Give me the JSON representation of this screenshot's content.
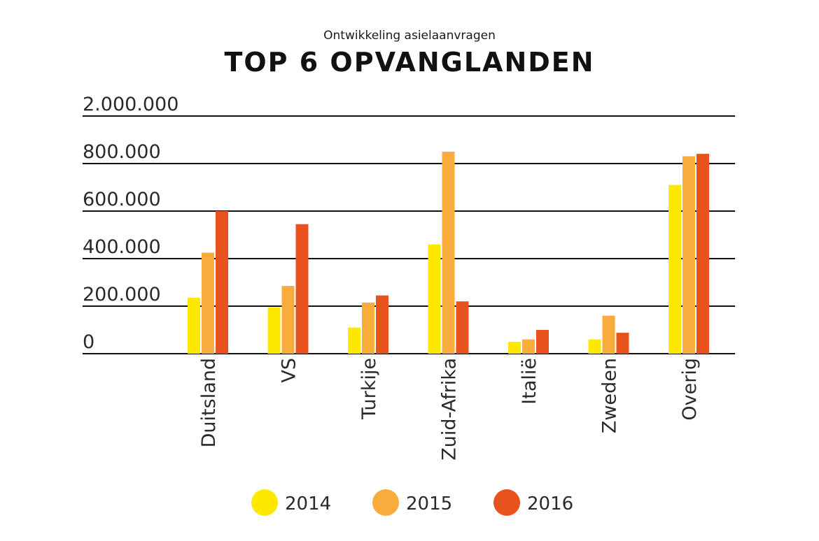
{
  "chart_data": {
    "type": "bar",
    "subtitle": "Ontwikkeling asielaanvragen",
    "title": "TOP 6 OPVANGLANDEN",
    "xlabel": "",
    "ylabel": "",
    "categories": [
      "Duitsland",
      "VS",
      "Turkije",
      "Zuid-Afrika",
      "Italië",
      "Zweden",
      "Overig"
    ],
    "ytick_labels": [
      "0",
      "200.000",
      "400.000",
      "600.000",
      "800.000",
      "2.000.000"
    ],
    "series": [
      {
        "name": "2014",
        "color": "#ffe800",
        "values": [
          235000,
          195000,
          110000,
          460000,
          50000,
          60000,
          710000
        ]
      },
      {
        "name": "2015",
        "color": "#f9ac3b",
        "values": [
          425000,
          285000,
          215000,
          1100000,
          60000,
          160000,
          985000
        ]
      },
      {
        "name": "2016",
        "color": "#e8521d",
        "values": [
          600000,
          545000,
          245000,
          220000,
          100000,
          88000,
          1045000
        ]
      }
    ],
    "grid": true,
    "legend": "bottom"
  }
}
